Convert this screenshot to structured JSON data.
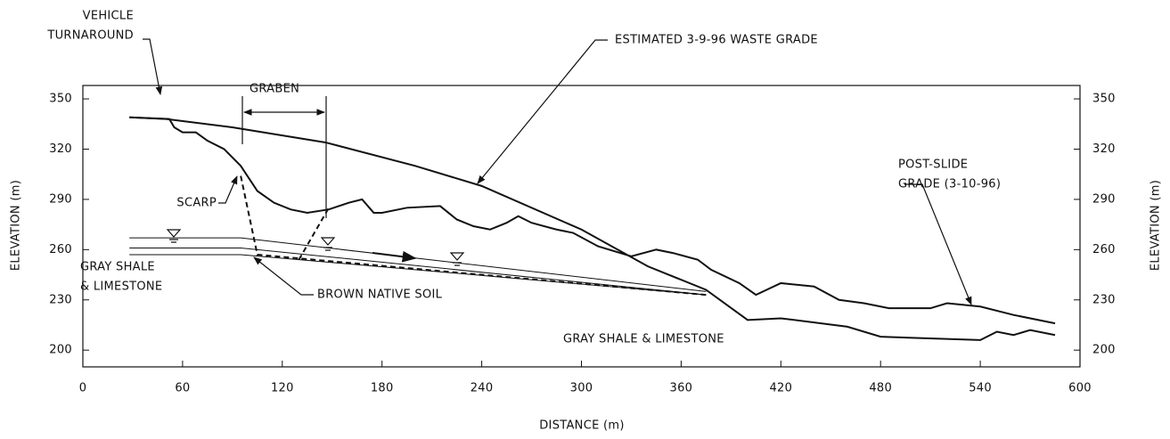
{
  "chart_data": {
    "type": "line",
    "x_label": "DISTANCE (m)",
    "y_label": "ELEVATION (m)",
    "y2_label": "ELEVATION (m)",
    "xlim": [
      0,
      600
    ],
    "xticks": [
      0,
      60,
      120,
      180,
      240,
      300,
      360,
      420,
      480,
      540,
      600
    ],
    "ylim": [
      190,
      358
    ],
    "yticks": [
      200,
      230,
      260,
      290,
      320,
      350
    ],
    "y2lim": [
      190,
      358
    ],
    "y2ticks": [
      200,
      230,
      260,
      290,
      320,
      350
    ],
    "series": [
      {
        "color": "#111111",
        "width": 2,
        "x": [
          28,
          50,
          90,
          146,
          200,
          240,
          300,
          340,
          375,
          400,
          420,
          460,
          480,
          540,
          550,
          560,
          570,
          585
        ],
        "values": [
          339,
          338,
          333,
          324,
          310,
          298,
          272,
          250,
          236,
          218,
          219,
          214,
          208,
          206,
          211,
          209,
          212,
          209
        ]
      },
      {
        "color": "#111111",
        "width": 2,
        "x": [
          28,
          52,
          55,
          60,
          68,
          75,
          85,
          95,
          105,
          115,
          125,
          135,
          148,
          160,
          168,
          175,
          180,
          195,
          215,
          225,
          235,
          245,
          255,
          262,
          270,
          285,
          295,
          310,
          330,
          345,
          355,
          370,
          378,
          395,
          405,
          420,
          440,
          455,
          470,
          485,
          510,
          520,
          540,
          560,
          585
        ],
        "values": [
          339,
          338,
          333,
          330,
          330,
          325,
          320,
          310,
          295,
          288,
          284,
          282,
          284,
          288,
          290,
          282,
          282,
          285,
          286,
          278,
          274,
          272,
          276,
          280,
          276,
          272,
          270,
          262,
          256,
          260,
          258,
          254,
          248,
          240,
          233,
          240,
          238,
          230,
          228,
          225,
          225,
          228,
          226,
          221,
          216
        ]
      },
      {
        "color": "#111111",
        "width": 1,
        "x": [
          28,
          95,
          375
        ],
        "values": [
          267,
          267,
          235
        ]
      },
      {
        "color": "#111111",
        "width": 1,
        "x": [
          28,
          95,
          375
        ],
        "values": [
          261,
          261,
          233
        ]
      },
      {
        "color": "#111111",
        "width": 1,
        "x": [
          28,
          95,
          375
        ],
        "values": [
          257,
          257,
          233
        ]
      },
      {
        "color": "#111111",
        "width": 2,
        "dash": true,
        "x": [
          95,
          105,
          375
        ],
        "values": [
          304,
          257,
          233
        ]
      },
      {
        "color": "#111111",
        "width": 2,
        "dash": true,
        "x": [
          130,
          148
        ],
        "values": [
          254,
          285
        ]
      }
    ],
    "annotations": [
      [
        "VEHICLE",
        "TURNAROUND"
      ],
      [
        "GRABEN"
      ],
      [
        "SCARP"
      ],
      [
        "ESTIMATED 3-9-96 WASTE GRADE"
      ],
      [
        "POST-SLIDE",
        "GRADE (3-10-96)"
      ],
      [
        "GRAY SHALE",
        "& LIMESTONE"
      ],
      [
        "BROWN NATIVE SOIL"
      ],
      [
        "GRAY SHALE & LIMESTONE"
      ]
    ]
  }
}
